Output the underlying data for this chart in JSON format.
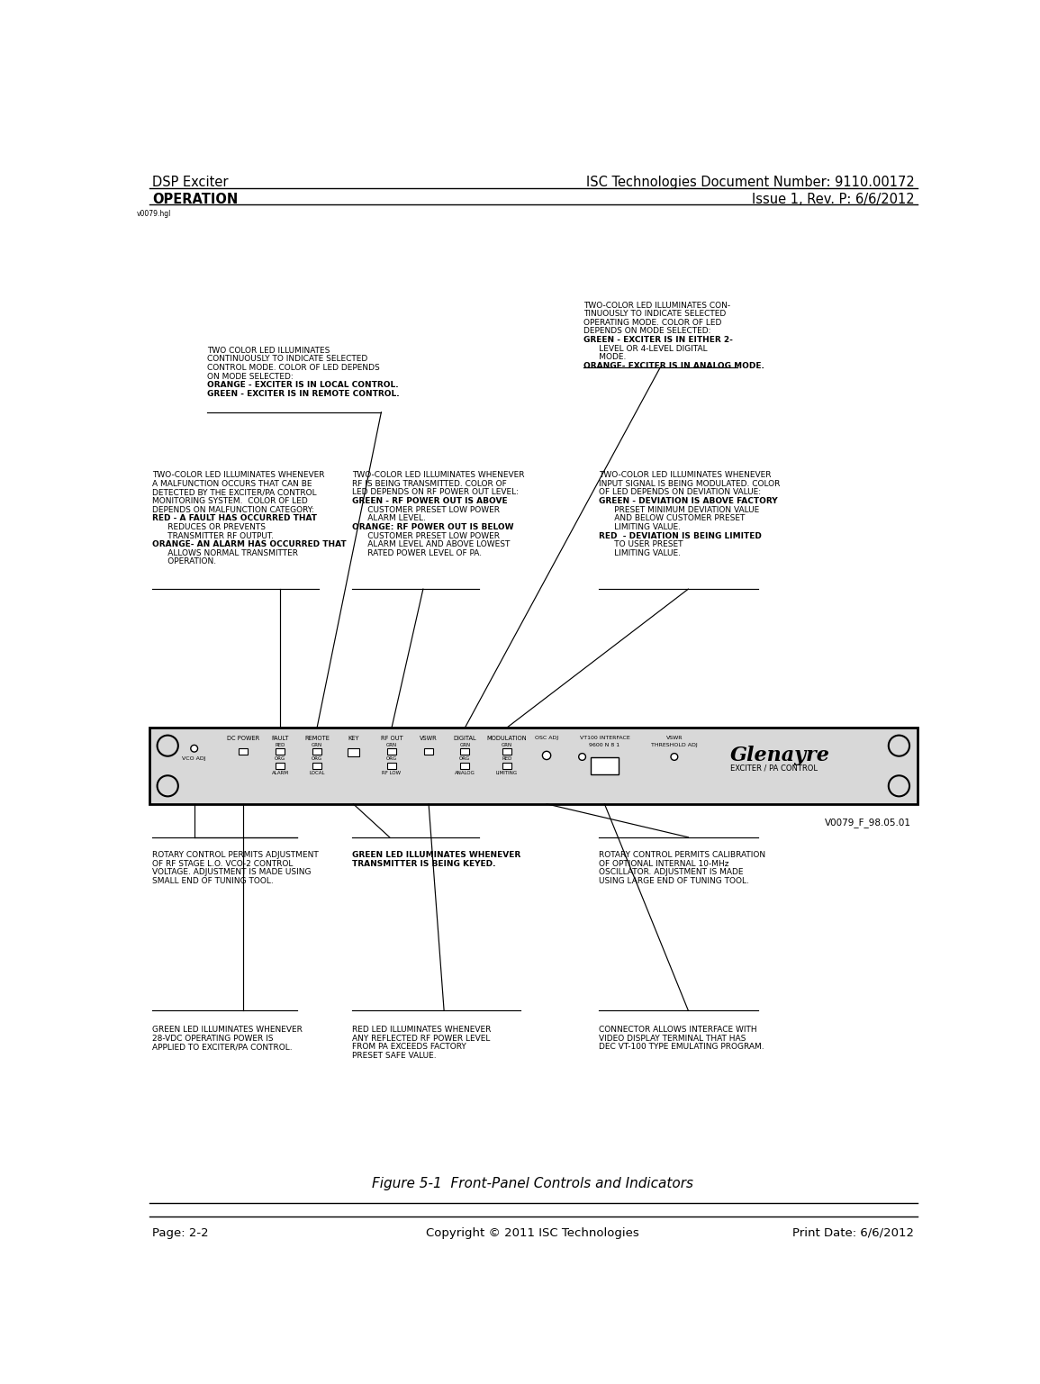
{
  "header_left": "DSP Exciter",
  "header_right": "ISC Technologies Document Number: 9110.00172",
  "subheader_left": "OPERATION",
  "subheader_right": "Issue 1, Rev. P: 6/6/2012",
  "watermark": "v0079.hgl",
  "footer_left": "Page: 2-2",
  "footer_center": "Copyright © 2011 ISC Technologies",
  "footer_right": "Print Date: 6/6/2012",
  "figure_caption": "Figure 5-1  Front-Panel Controls and Indicators",
  "bg_color": "#ffffff",
  "ann1_lines": [
    "TWO COLOR LED ILLUMINATES",
    "CONTINUOUSLY TO INDICATE SELECTED",
    "CONTROL MODE. COLOR OF LED DEPENDS",
    "ON MODE SELECTED:",
    "ORANGE - EXCITER IS IN LOCAL CONTROL.",
    "GREEN - EXCITER IS IN REMOTE CONTROL."
  ],
  "ann1_bold": [
    false,
    false,
    false,
    false,
    true,
    true
  ],
  "ann2_lines": [
    "TWO-COLOR LED ILLUMINATES CON-",
    "TINUOUSLY TO INDICATE SELECTED",
    "OPERATING MODE. COLOR OF LED",
    "DEPENDS ON MODE SELECTED:",
    "GREEN - EXCITER IS IN EITHER 2-",
    "      LEVEL OR 4-LEVEL DIGITAL",
    "      MODE.",
    "ORANGE- EXCITER IS IN ANALOG MODE."
  ],
  "ann2_bold": [
    false,
    false,
    false,
    false,
    true,
    false,
    false,
    true
  ],
  "ann3_lines": [
    "TWO-COLOR LED ILLUMINATES WHENEVER",
    "A MALFUNCTION OCCURS THAT CAN BE",
    "DETECTED BY THE EXCITER/PA CONTROL",
    "MONITORING SYSTEM.  COLOR OF LED",
    "DEPENDS ON MALFUNCTION CATEGORY:",
    "RED - A FAULT HAS OCCURRED THAT",
    "      REDUCES OR PREVENTS",
    "      TRANSMITTER RF OUTPUT.",
    "ORANGE- AN ALARM HAS OCCURRED THAT",
    "      ALLOWS NORMAL TRANSMITTER",
    "      OPERATION."
  ],
  "ann3_bold": [
    false,
    false,
    false,
    false,
    false,
    true,
    false,
    false,
    true,
    false,
    false
  ],
  "ann4_lines": [
    "TWO-COLOR LED ILLUMINATES WHENEVER",
    "RF IS BEING TRANSMITTED. COLOR OF",
    "LED DEPENDS ON RF POWER OUT LEVEL:",
    "GREEN - RF POWER OUT IS ABOVE",
    "      CUSTOMER PRESET LOW POWER",
    "      ALARM LEVEL.",
    "ORANGE: RF POWER OUT IS BELOW",
    "      CUSTOMER PRESET LOW POWER",
    "      ALARM LEVEL AND ABOVE LOWEST",
    "      RATED POWER LEVEL OF PA."
  ],
  "ann4_bold": [
    false,
    false,
    false,
    true,
    false,
    false,
    true,
    false,
    false,
    false
  ],
  "ann5_lines": [
    "TWO-COLOR LED ILLUMINATES WHENEVER",
    "INPUT SIGNAL IS BEING MODULATED. COLOR",
    "OF LED DEPENDS ON DEVIATION VALUE:",
    "GREEN - DEVIATION IS ABOVE FACTORY",
    "      PRESET MINIMUM DEVIATION VALUE",
    "      AND BELOW CUSTOMER PRESET",
    "      LIMITING VALUE.",
    "RED  - DEVIATION IS BEING LIMITED",
    "      TO USER PRESET",
    "      LIMITING VALUE."
  ],
  "ann5_bold": [
    false,
    false,
    false,
    true,
    false,
    false,
    false,
    true,
    false,
    false
  ],
  "bot1_lines": [
    "ROTARY CONTROL PERMITS ADJUSTMENT",
    "OF RF STAGE L.O. VCO-2 CONTROL",
    "VOLTAGE. ADJUSTMENT IS MADE USING",
    "SMALL END OF TUNING TOOL."
  ],
  "bot2_lines": [
    "GREEN LED ILLUMINATES WHENEVER",
    "TRANSMITTER IS BEING KEYED."
  ],
  "bot3_lines": [
    "ROTARY CONTROL PERMITS CALIBRATION",
    "OF OPTIONAL INTERNAL 10-MHz",
    "OSCILLATOR. ADJUSTMENT IS MADE",
    "USING LARGE END OF TUNING TOOL."
  ],
  "fbot1_lines": [
    "GREEN LED ILLUMINATES WHENEVER",
    "28-VDC OPERATING POWER IS",
    "APPLIED TO EXCITER/PA CONTROL."
  ],
  "fbot2_lines": [
    "RED LED ILLUMINATES WHENEVER",
    "ANY REFLECTED RF POWER LEVEL",
    "FROM PA EXCEEDS FACTORY",
    "PRESET SAFE VALUE."
  ],
  "fbot3_lines": [
    "CONNECTOR ALLOWS INTERFACE WITH",
    "VIDEO DISPLAY TERMINAL THAT HAS",
    "DEC VT-100 TYPE EMULATING PROGRAM."
  ]
}
